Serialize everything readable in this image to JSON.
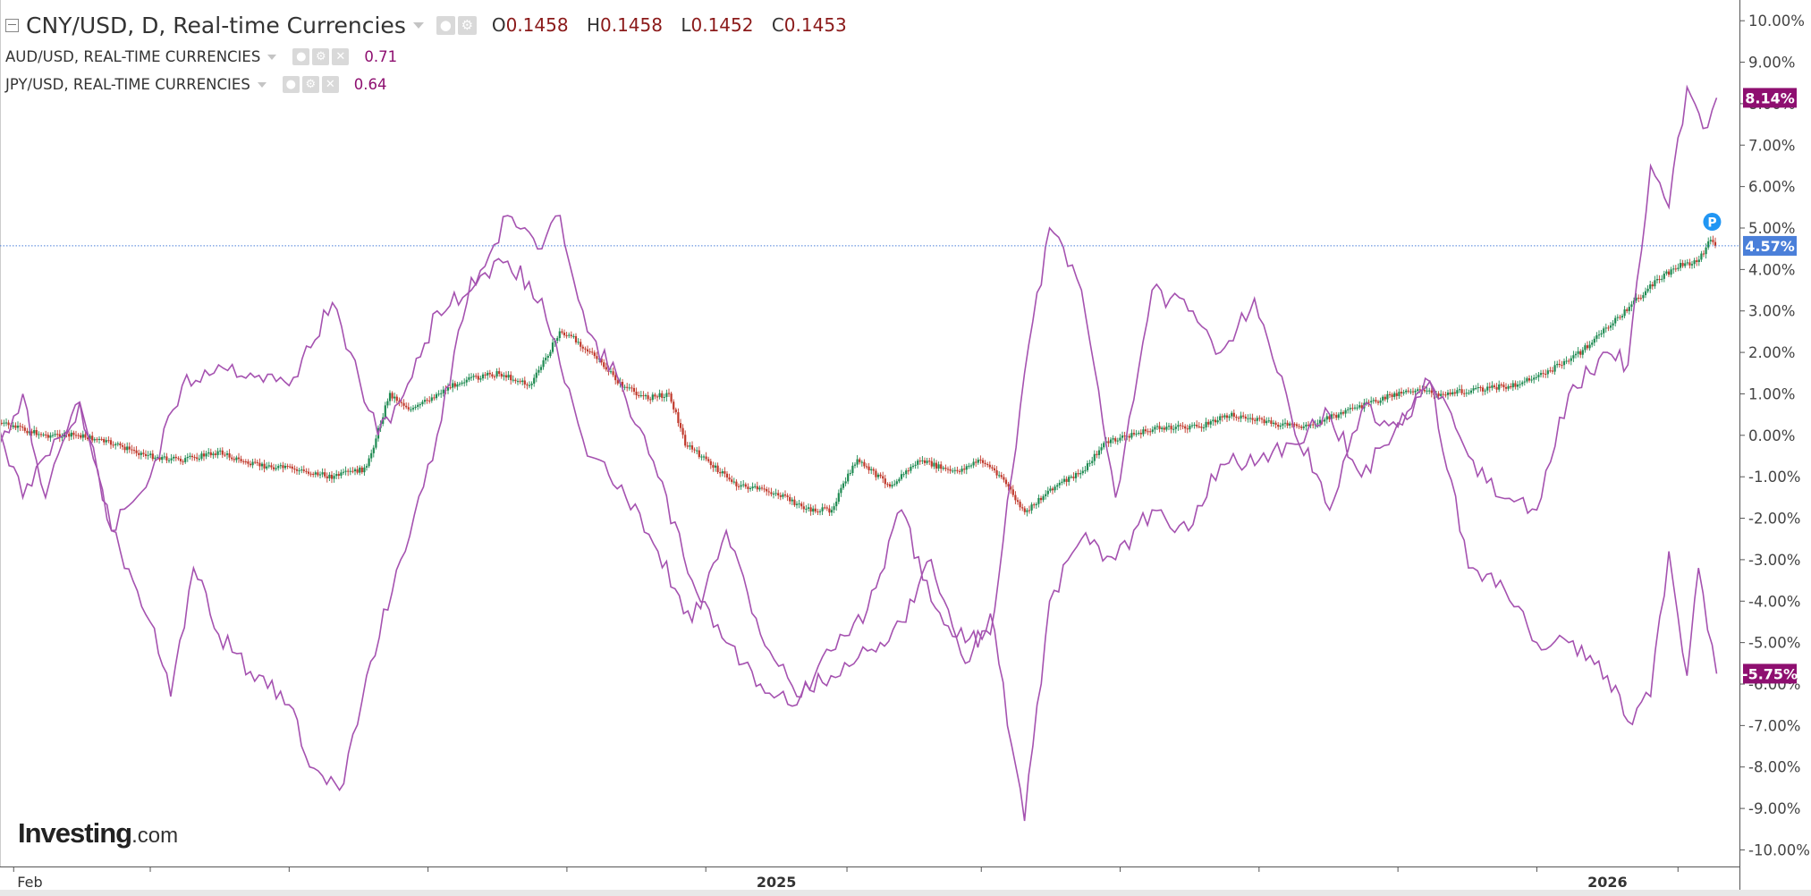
{
  "legend": {
    "main": {
      "title": "CNY/USD, D, Real-time Currencies",
      "ohlc": [
        {
          "key": "O",
          "value": "0.1458"
        },
        {
          "key": "H",
          "value": "0.1458"
        },
        {
          "key": "L",
          "value": "0.1452"
        },
        {
          "key": "C",
          "value": "0.1453"
        }
      ]
    },
    "overlays": [
      {
        "title": "AUD/USD, REAL-TIME CURRENCIES",
        "value": "0.71"
      },
      {
        "title": "JPY/USD, REAL-TIME CURRENCIES",
        "value": "0.64"
      }
    ]
  },
  "brand": {
    "name": "Investing",
    "suffix": ".com"
  },
  "colors": {
    "overlay_line": "#a552b0",
    "candle_up": "#1e8a52",
    "candle_down": "#c0392b",
    "axis_text": "#444444",
    "price_line": "#4a7fd9",
    "cny_badge": "#4a7fd9",
    "aud_badge": "#8e0f70",
    "jpy_badge": "#8e0f70"
  },
  "chart_data": {
    "type": "line",
    "comparison_mode": "percent change",
    "y_axis": {
      "ticks": [
        10,
        9,
        8,
        7,
        6,
        5,
        4,
        3,
        2,
        1,
        0,
        -1,
        -2,
        -3,
        -4,
        -5,
        -6,
        -7,
        -8,
        -9,
        -10
      ],
      "tick_labels": [
        "10.00%",
        "9.00%",
        "8.00%",
        "7.00%",
        "6.00%",
        "5.00%",
        "4.00%",
        "3.00%",
        "2.00%",
        "1.00%",
        "0.00%",
        "-1.00%",
        "-2.00%",
        "-3.00%",
        "-4.00%",
        "-5.00%",
        "-6.00%",
        "-7.00%",
        "-8.00%",
        "-9.00%",
        "-10.00%"
      ],
      "range": [
        -10.4,
        10.5
      ],
      "position": "right"
    },
    "x_axis": {
      "range": [
        "2024-01-26",
        "2026-02-28"
      ],
      "labels": [
        {
          "date": "2024-02-01",
          "text": "Feb"
        },
        {
          "date": "2025-01-01",
          "text": "2025"
        },
        {
          "date": "2026-01-01",
          "text": "2026"
        }
      ],
      "ticks": [
        "2024-02-01",
        "2024-04-01",
        "2024-06-01",
        "2024-08-01",
        "2024-10-01",
        "2024-12-01",
        "2025-02-01",
        "2025-04-01",
        "2025-06-01",
        "2025-08-01",
        "2025-10-01",
        "2025-12-01",
        "2026-02-01"
      ]
    },
    "series": [
      {
        "name": "CNY/USD",
        "style": "candlestick",
        "last_label": "4.57%",
        "last_value": 4.57,
        "points": [
          [
            "2024-01-26",
            0.3
          ],
          [
            "2024-02-01",
            0.2
          ],
          [
            "2024-02-15",
            0.0
          ],
          [
            "2024-03-01",
            0.0
          ],
          [
            "2024-03-15",
            -0.2
          ],
          [
            "2024-04-01",
            -0.5
          ],
          [
            "2024-04-15",
            -0.6
          ],
          [
            "2024-05-01",
            -0.4
          ],
          [
            "2024-05-15",
            -0.7
          ],
          [
            "2024-06-01",
            -0.8
          ],
          [
            "2024-06-20",
            -1.0
          ],
          [
            "2024-07-05",
            -0.8
          ],
          [
            "2024-07-15",
            1.0
          ],
          [
            "2024-07-25",
            0.6
          ],
          [
            "2024-08-05",
            1.0
          ],
          [
            "2024-08-15",
            1.3
          ],
          [
            "2024-09-01",
            1.5
          ],
          [
            "2024-09-15",
            1.2
          ],
          [
            "2024-09-28",
            2.5
          ],
          [
            "2024-10-05",
            2.3
          ],
          [
            "2024-10-15",
            1.8
          ],
          [
            "2024-10-25",
            1.2
          ],
          [
            "2024-11-05",
            0.9
          ],
          [
            "2024-11-15",
            1.0
          ],
          [
            "2024-11-22",
            -0.2
          ],
          [
            "2024-12-01",
            -0.6
          ],
          [
            "2024-12-15",
            -1.2
          ],
          [
            "2025-01-01",
            -1.4
          ],
          [
            "2025-01-15",
            -1.8
          ],
          [
            "2025-01-25",
            -1.8
          ],
          [
            "2025-02-05",
            -0.6
          ],
          [
            "2025-02-20",
            -1.2
          ],
          [
            "2025-03-05",
            -0.6
          ],
          [
            "2025-03-20",
            -0.9
          ],
          [
            "2025-04-01",
            -0.6
          ],
          [
            "2025-04-10",
            -1.0
          ],
          [
            "2025-04-20",
            -1.9
          ],
          [
            "2025-05-01",
            -1.3
          ],
          [
            "2025-05-15",
            -0.9
          ],
          [
            "2025-05-25",
            -0.2
          ],
          [
            "2025-06-05",
            0.0
          ],
          [
            "2025-06-20",
            0.2
          ],
          [
            "2025-07-05",
            0.2
          ],
          [
            "2025-07-20",
            0.5
          ],
          [
            "2025-08-05",
            0.3
          ],
          [
            "2025-08-20",
            0.2
          ],
          [
            "2025-09-05",
            0.5
          ],
          [
            "2025-09-20",
            0.8
          ],
          [
            "2025-10-05",
            1.1
          ],
          [
            "2025-10-20",
            1.0
          ],
          [
            "2025-11-05",
            1.1
          ],
          [
            "2025-11-20",
            1.2
          ],
          [
            "2025-12-05",
            1.5
          ],
          [
            "2025-12-20",
            2.0
          ],
          [
            "2026-01-05",
            2.8
          ],
          [
            "2026-01-20",
            3.6
          ],
          [
            "2026-02-01",
            4.1
          ],
          [
            "2026-02-10",
            4.2
          ],
          [
            "2026-02-15",
            4.7
          ],
          [
            "2026-02-18",
            4.57
          ]
        ]
      },
      {
        "name": "AUD/USD",
        "style": "line",
        "last_label": "8.14%",
        "last_value": 8.14,
        "points": [
          [
            "2024-01-26",
            0.1
          ],
          [
            "2024-02-05",
            -1.5
          ],
          [
            "2024-02-15",
            -0.5
          ],
          [
            "2024-03-01",
            0.8
          ],
          [
            "2024-03-15",
            -2.3
          ],
          [
            "2024-04-01",
            -1.0
          ],
          [
            "2024-04-15",
            1.2
          ],
          [
            "2024-05-01",
            1.7
          ],
          [
            "2024-05-15",
            1.5
          ],
          [
            "2024-06-01",
            1.2
          ],
          [
            "2024-06-20",
            3.2
          ],
          [
            "2024-07-10",
            0.0
          ],
          [
            "2024-07-25",
            1.4
          ],
          [
            "2024-08-05",
            3.0
          ],
          [
            "2024-08-20",
            3.5
          ],
          [
            "2024-09-05",
            5.3
          ],
          [
            "2024-09-20",
            4.5
          ],
          [
            "2024-09-28",
            5.3
          ],
          [
            "2024-10-10",
            2.5
          ],
          [
            "2024-10-25",
            1.2
          ],
          [
            "2024-11-10",
            -1.0
          ],
          [
            "2024-11-25",
            -3.5
          ],
          [
            "2024-12-10",
            -5.0
          ],
          [
            "2024-12-25",
            -6.0
          ],
          [
            "2025-01-10",
            -6.5
          ],
          [
            "2025-01-25",
            -5.2
          ],
          [
            "2025-02-10",
            -4.2
          ],
          [
            "2025-02-25",
            -1.8
          ],
          [
            "2025-03-10",
            -4.0
          ],
          [
            "2025-03-25",
            -5.0
          ],
          [
            "2025-04-05",
            -4.8
          ],
          [
            "2025-04-20",
            1.5
          ],
          [
            "2025-05-01",
            5.0
          ],
          [
            "2025-05-15",
            3.5
          ],
          [
            "2025-05-30",
            -1.5
          ],
          [
            "2025-06-15",
            3.5
          ],
          [
            "2025-07-01",
            3.0
          ],
          [
            "2025-07-15",
            2.0
          ],
          [
            "2025-07-30",
            3.3
          ],
          [
            "2025-08-15",
            0.5
          ],
          [
            "2025-09-01",
            -1.8
          ],
          [
            "2025-09-15",
            0.6
          ],
          [
            "2025-10-01",
            0.2
          ],
          [
            "2025-10-15",
            1.3
          ],
          [
            "2025-11-01",
            -0.5
          ],
          [
            "2025-11-15",
            -1.5
          ],
          [
            "2025-12-01",
            -1.8
          ],
          [
            "2025-12-15",
            1.0
          ],
          [
            "2026-01-01",
            2.0
          ],
          [
            "2026-01-10",
            1.7
          ],
          [
            "2026-01-20",
            6.5
          ],
          [
            "2026-01-28",
            5.5
          ],
          [
            "2026-02-05",
            8.4
          ],
          [
            "2026-02-12",
            7.4
          ],
          [
            "2026-02-18",
            8.14
          ]
        ]
      },
      {
        "name": "JPY/USD",
        "style": "line",
        "last_label": "-5.75%",
        "last_value": -5.75,
        "points": [
          [
            "2024-01-26",
            -0.2
          ],
          [
            "2024-02-05",
            1.0
          ],
          [
            "2024-02-15",
            -1.5
          ],
          [
            "2024-03-01",
            0.8
          ],
          [
            "2024-03-15",
            -2.3
          ],
          [
            "2024-04-01",
            -4.5
          ],
          [
            "2024-04-10",
            -6.3
          ],
          [
            "2024-04-20",
            -3.2
          ],
          [
            "2024-05-01",
            -4.8
          ],
          [
            "2024-05-15",
            -5.7
          ],
          [
            "2024-06-01",
            -6.5
          ],
          [
            "2024-06-10",
            -8.0
          ],
          [
            "2024-06-25",
            -8.4
          ],
          [
            "2024-07-05",
            -5.8
          ],
          [
            "2024-07-20",
            -3.0
          ],
          [
            "2024-08-05",
            0.0
          ],
          [
            "2024-08-20",
            3.8
          ],
          [
            "2024-09-05",
            4.2
          ],
          [
            "2024-09-20",
            3.3
          ],
          [
            "2024-10-10",
            -0.5
          ],
          [
            "2024-10-25",
            -1.2
          ],
          [
            "2024-11-10",
            -2.8
          ],
          [
            "2024-11-25",
            -4.5
          ],
          [
            "2024-12-10",
            -2.3
          ],
          [
            "2024-12-25",
            -4.8
          ],
          [
            "2025-01-10",
            -6.3
          ],
          [
            "2025-01-25",
            -5.8
          ],
          [
            "2025-02-10",
            -5.2
          ],
          [
            "2025-02-25",
            -4.5
          ],
          [
            "2025-03-10",
            -3.0
          ],
          [
            "2025-03-25",
            -5.5
          ],
          [
            "2025-04-05",
            -4.3
          ],
          [
            "2025-04-20",
            -9.3
          ],
          [
            "2025-05-01",
            -4.0
          ],
          [
            "2025-05-15",
            -2.5
          ],
          [
            "2025-05-30",
            -3.0
          ],
          [
            "2025-06-15",
            -1.8
          ],
          [
            "2025-07-01",
            -2.3
          ],
          [
            "2025-07-15",
            -0.7
          ],
          [
            "2025-08-01",
            -0.6
          ],
          [
            "2025-08-15",
            -0.2
          ],
          [
            "2025-09-01",
            0.5
          ],
          [
            "2025-09-15",
            -1.0
          ],
          [
            "2025-10-01",
            0.3
          ],
          [
            "2025-10-15",
            1.3
          ],
          [
            "2025-11-01",
            -3.2
          ],
          [
            "2025-11-15",
            -3.5
          ],
          [
            "2025-12-01",
            -5.0
          ],
          [
            "2025-12-15",
            -5.0
          ],
          [
            "2026-01-01",
            -5.8
          ],
          [
            "2026-01-10",
            -6.9
          ],
          [
            "2026-01-20",
            -6.3
          ],
          [
            "2026-01-28",
            -2.8
          ],
          [
            "2026-02-05",
            -5.8
          ],
          [
            "2026-02-10",
            -3.2
          ],
          [
            "2026-02-18",
            -5.75
          ]
        ]
      }
    ],
    "price_line": {
      "value": 4.57,
      "style": "dotted"
    },
    "marker": {
      "date": "2026-02-16",
      "value": 5.15,
      "text": "P"
    },
    "grid": false
  }
}
